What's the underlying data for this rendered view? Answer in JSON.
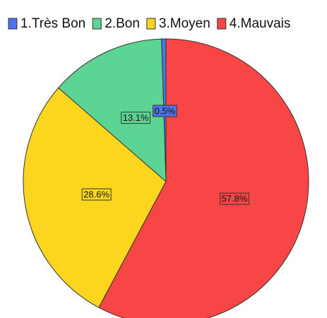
{
  "chart_data": {
    "type": "pie",
    "categories": [
      "1.Très Bon",
      "2.Bon",
      "3.Moyen",
      "4.Mauvais"
    ],
    "values": [
      0.5,
      13.1,
      28.6,
      57.8
    ],
    "value_labels": [
      "0.5%",
      "13.1%",
      "28.6%",
      "57.8%"
    ],
    "colors": [
      "#4f73ea",
      "#5cd493",
      "#fcd61e",
      "#f84646"
    ],
    "legend": "top"
  }
}
